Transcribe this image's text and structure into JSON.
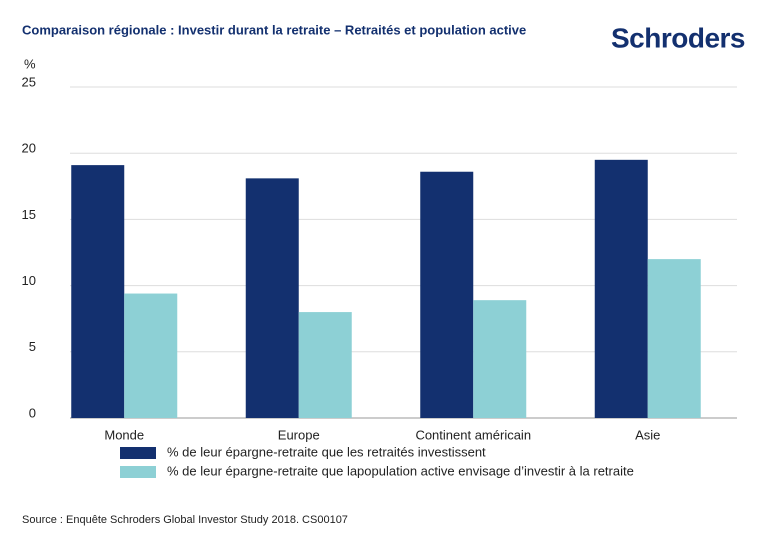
{
  "logo": "Schroders",
  "chart_data": {
    "type": "bar",
    "title": "Comparaison régionale : Investir durant la retraite – Retraités et population active",
    "y_label": "%",
    "categories": [
      "Monde",
      "Europe",
      "Continent américain",
      "Asie"
    ],
    "series": [
      {
        "name": "% de leur épargne-retraite que les retraités investissent",
        "color": "#13306f",
        "values": [
          19.1,
          18.1,
          18.6,
          19.5
        ]
      },
      {
        "name": "% de leur épargne-retraite que lapopulation active envisage d’investir à la retraite",
        "color": "#8dd0d5",
        "values": [
          9.4,
          8,
          8.9,
          12
        ]
      }
    ],
    "ylim": [
      0,
      25
    ],
    "yticks": [
      0,
      5,
      10,
      15,
      20,
      25
    ],
    "grid": true,
    "source": "Source : Enquête Schroders Global Investor Study 2018. CS00107"
  }
}
